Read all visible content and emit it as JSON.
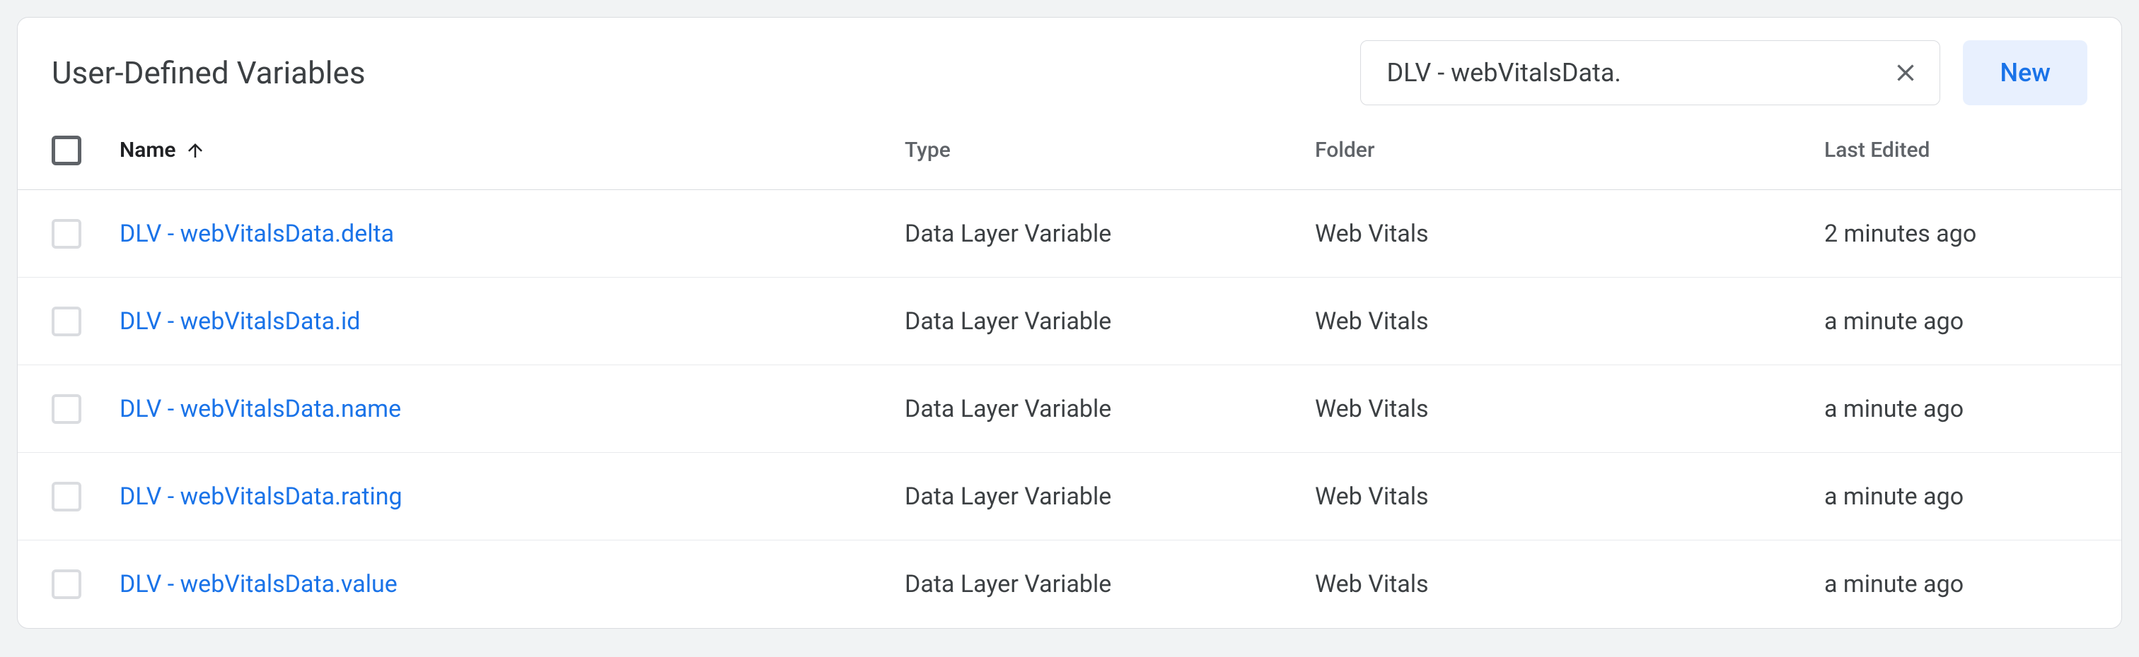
{
  "panel": {
    "title": "User-Defined Variables",
    "search_value": "DLV - webVitalsData.",
    "new_button_label": "New"
  },
  "table": {
    "sort_column": "name",
    "sort_direction": "asc",
    "columns": {
      "name": "Name",
      "type": "Type",
      "folder": "Folder",
      "last_edited": "Last Edited"
    },
    "rows": [
      {
        "name": "DLV - webVitalsData.delta",
        "type": "Data Layer Variable",
        "folder": "Web Vitals",
        "last_edited": "2 minutes ago"
      },
      {
        "name": "DLV - webVitalsData.id",
        "type": "Data Layer Variable",
        "folder": "Web Vitals",
        "last_edited": "a minute ago"
      },
      {
        "name": "DLV - webVitalsData.name",
        "type": "Data Layer Variable",
        "folder": "Web Vitals",
        "last_edited": "a minute ago"
      },
      {
        "name": "DLV - webVitalsData.rating",
        "type": "Data Layer Variable",
        "folder": "Web Vitals",
        "last_edited": "a minute ago"
      },
      {
        "name": "DLV - webVitalsData.value",
        "type": "Data Layer Variable",
        "folder": "Web Vitals",
        "last_edited": "a minute ago"
      }
    ]
  }
}
